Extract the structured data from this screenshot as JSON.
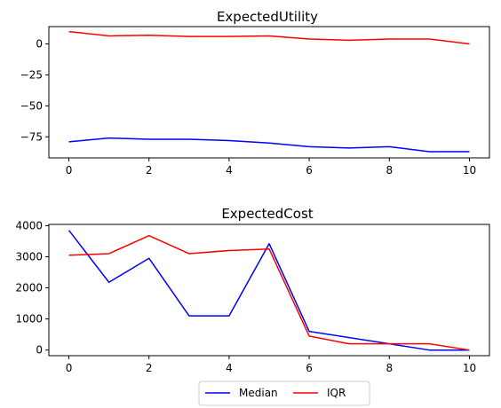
{
  "chart_data": [
    {
      "type": "line",
      "title": "ExpectedUtility",
      "xlabel": "",
      "ylabel": "",
      "x": [
        0,
        1,
        2,
        3,
        4,
        5,
        6,
        7,
        8,
        9,
        10
      ],
      "xlim": [
        -0.5,
        10.5
      ],
      "ylim": [
        -92,
        14
      ],
      "xticks": [
        0,
        2,
        4,
        6,
        8,
        10
      ],
      "yticks": [
        0,
        -25,
        -50,
        -75
      ],
      "ytick_labels": [
        "0",
        "−25",
        "−50",
        "−75"
      ],
      "grid": false,
      "series": [
        {
          "name": "Median",
          "color": "#0000ff",
          "values": [
            -79,
            -76,
            -77,
            -77,
            -78,
            -80,
            -83,
            -84,
            -83,
            -87,
            -87
          ]
        },
        {
          "name": "IQR",
          "color": "#ff0000",
          "values": [
            10,
            6.5,
            7,
            6,
            6,
            6.5,
            4,
            3,
            4,
            4,
            0
          ]
        }
      ]
    },
    {
      "type": "line",
      "title": "ExpectedCost",
      "xlabel": "",
      "ylabel": "",
      "x": [
        0,
        1,
        2,
        3,
        4,
        5,
        6,
        7,
        8,
        9,
        10
      ],
      "xlim": [
        -0.5,
        10.5
      ],
      "ylim": [
        -180,
        4040
      ],
      "xticks": [
        0,
        2,
        4,
        6,
        8,
        10
      ],
      "yticks": [
        0,
        1000,
        2000,
        3000,
        4000
      ],
      "ytick_labels": [
        "0",
        "1000",
        "2000",
        "3000",
        "4000"
      ],
      "grid": false,
      "series": [
        {
          "name": "Median",
          "color": "#0000ff",
          "values": [
            3850,
            2180,
            2950,
            1100,
            1100,
            3420,
            600,
            400,
            200,
            0,
            0
          ]
        },
        {
          "name": "IQR",
          "color": "#ff0000",
          "values": [
            3050,
            3100,
            3680,
            3100,
            3200,
            3250,
            450,
            200,
            200,
            200,
            0
          ]
        }
      ]
    }
  ],
  "legend": {
    "placement": "bottom-center",
    "entries": [
      {
        "label": "Median",
        "color": "#0000ff"
      },
      {
        "label": "IQR",
        "color": "#ff0000"
      }
    ]
  }
}
